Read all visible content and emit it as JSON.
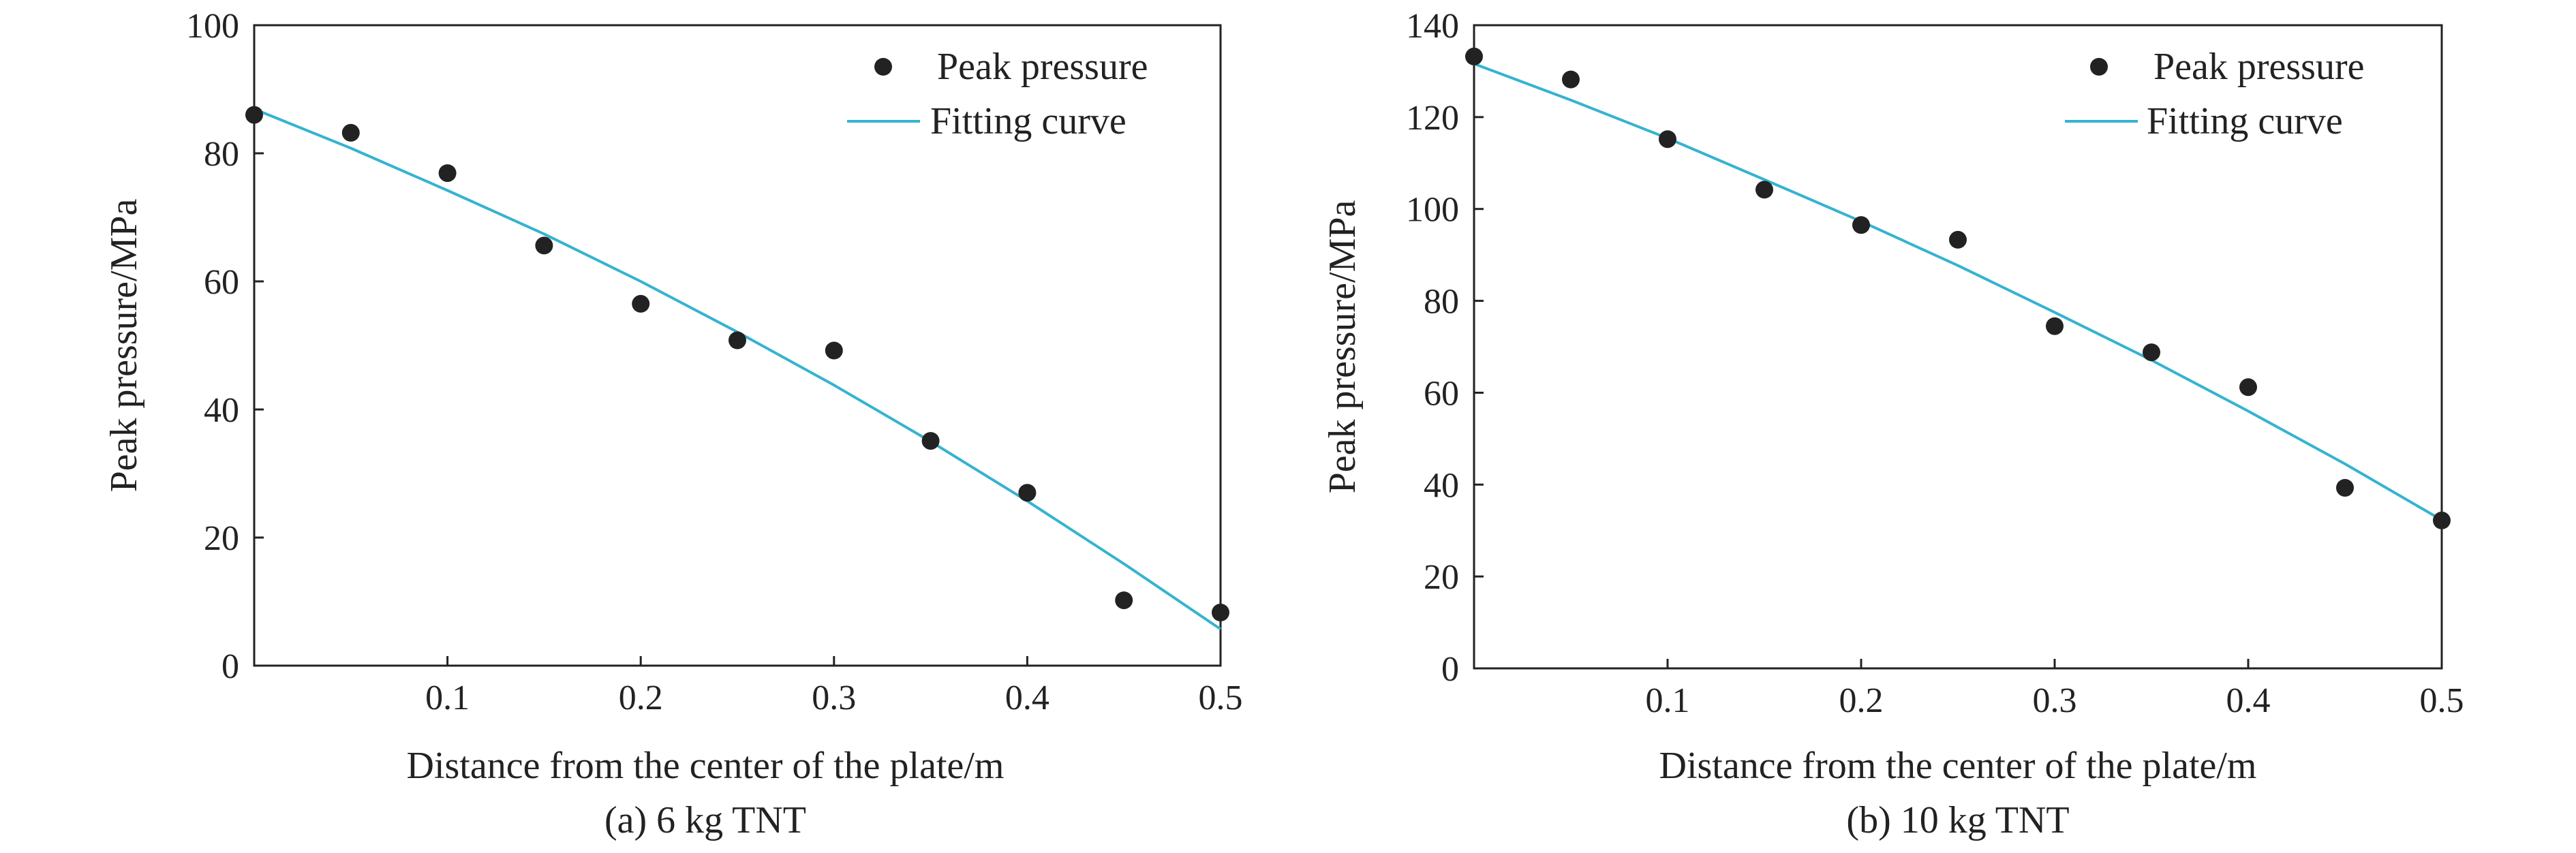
{
  "chart_data": [
    {
      "type": "scatter",
      "caption": "(a) 6 kg TNT",
      "xlabel": "Distance from the center of the plate/m",
      "ylabel": "Peak pressure/MPa",
      "xlim": [
        0,
        0.5
      ],
      "ylim": [
        0,
        100
      ],
      "xticks": [
        0.1,
        0.2,
        0.3,
        0.4,
        0.5
      ],
      "yticks": [
        0,
        20,
        40,
        60,
        80,
        100
      ],
      "grid": false,
      "legend_position": "top-right",
      "series": [
        {
          "name": "Peak pressure",
          "kind": "scatter",
          "color": "#222222",
          "x": [
            0,
            0.05,
            0.1,
            0.15,
            0.2,
            0.25,
            0.3,
            0.35,
            0.4,
            0.45,
            0.5
          ],
          "y": [
            86,
            83.2,
            76.9,
            65.6,
            56.5,
            50.8,
            49.2,
            35.1,
            27.0,
            10.2,
            8.3
          ]
        },
        {
          "name": "Fitting curve",
          "kind": "line",
          "color": "#35b3d0",
          "x": [
            0,
            0.05,
            0.1,
            0.15,
            0.2,
            0.25,
            0.3,
            0.35,
            0.4,
            0.45,
            0.5
          ],
          "y": [
            86.9,
            80.8,
            74.2,
            67.4,
            60.0,
            52.1,
            43.8,
            35.0,
            25.7,
            15.9,
            5.7
          ]
        }
      ]
    },
    {
      "type": "scatter",
      "caption": "(b) 10 kg TNT",
      "xlabel": "Distance from the center of the plate/m",
      "ylabel": "Peak pressure/MPa",
      "xlim": [
        0,
        0.5
      ],
      "ylim": [
        0,
        140
      ],
      "xticks": [
        0.1,
        0.2,
        0.3,
        0.4,
        0.5
      ],
      "yticks": [
        0,
        20,
        40,
        60,
        80,
        100,
        120,
        140
      ],
      "grid": false,
      "legend_position": "top-right",
      "series": [
        {
          "name": "Peak pressure",
          "kind": "scatter",
          "color": "#222222",
          "x": [
            0,
            0.05,
            0.1,
            0.15,
            0.2,
            0.25,
            0.3,
            0.35,
            0.4,
            0.45,
            0.5
          ],
          "y": [
            133.2,
            128.2,
            115.2,
            104.2,
            96.5,
            93.3,
            74.5,
            68.8,
            61.2,
            39.3,
            32.2
          ]
        },
        {
          "name": "Fitting curve",
          "kind": "line",
          "color": "#35b3d0",
          "x": [
            0,
            0.05,
            0.1,
            0.15,
            0.2,
            0.25,
            0.3,
            0.35,
            0.4,
            0.45,
            0.5
          ],
          "y": [
            131.6,
            123.7,
            115.4,
            106.4,
            97.3,
            87.7,
            77.5,
            67.1,
            56.0,
            44.5,
            32.3
          ]
        }
      ]
    }
  ]
}
